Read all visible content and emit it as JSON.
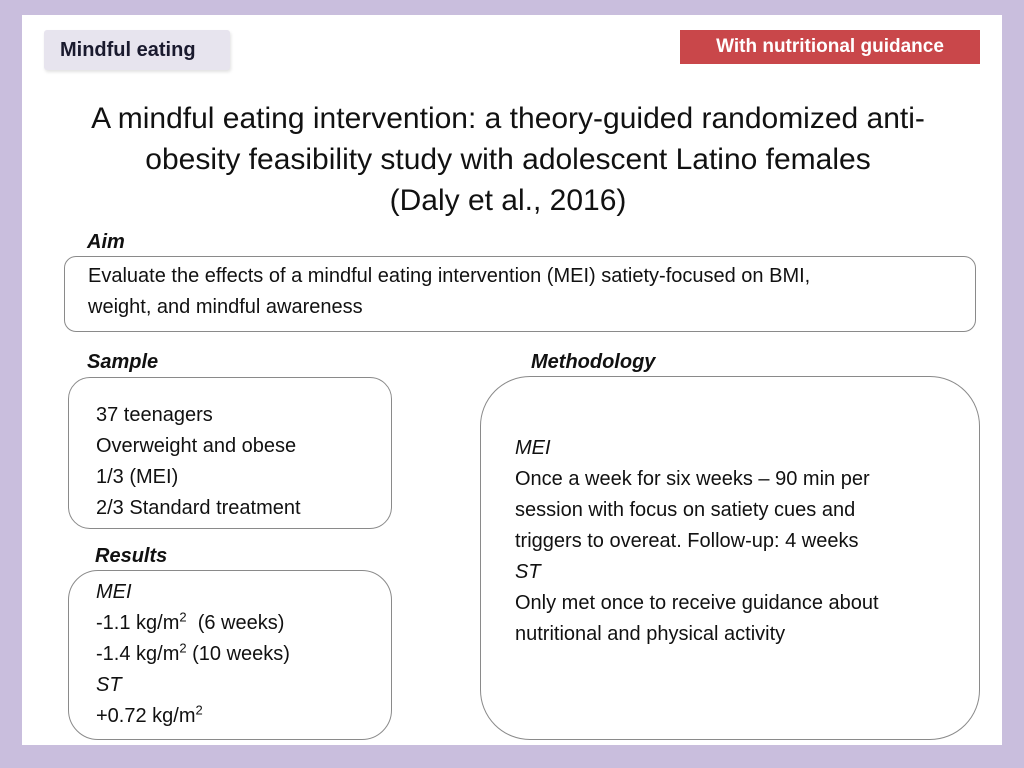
{
  "tags": {
    "left": "Mindful eating",
    "right": "With nutritional guidance"
  },
  "title": {
    "line1": "A mindful eating intervention: a theory-guided randomized anti-",
    "line2": "obesity feasibility study with adolescent Latino females",
    "line3": "(Daly et al., 2016)"
  },
  "aim": {
    "label": "Aim",
    "line1": "Evaluate the effects of a mindful eating intervention (MEI) satiety-focused on BMI,",
    "line2": "weight, and mindful awareness"
  },
  "sample": {
    "label": "Sample",
    "items": [
      "37 teenagers",
      "Overweight and obese",
      "1/3 (MEI)",
      "2/3 Standard treatment"
    ]
  },
  "methodology": {
    "label": "Methodology",
    "mei_heading": "MEI",
    "mei_lines": [
      "Once a week for six weeks – 90 min per",
      "session with focus on satiety cues and",
      "triggers to overeat. Follow-up:  4 weeks"
    ],
    "st_heading": "ST",
    "st_lines": [
      "Only met once to receive guidance about",
      "nutritional and physical activity"
    ]
  },
  "results": {
    "label": "Results",
    "mei_heading": "MEI",
    "mei_row1_value": "-1.1 kg/m",
    "mei_row1_sup": "2",
    "mei_row1_note": "  (6 weeks)",
    "mei_row2_value": "-1.4 kg/m",
    "mei_row2_sup": "2",
    "mei_row2_note": " (10 weeks)",
    "st_heading": "ST",
    "st_value": "+0.72 kg/m",
    "st_sup": "2"
  },
  "colors": {
    "frame": "#c9bedd",
    "right_tag": "#c9474a",
    "left_tag": "#e7e4ee"
  }
}
